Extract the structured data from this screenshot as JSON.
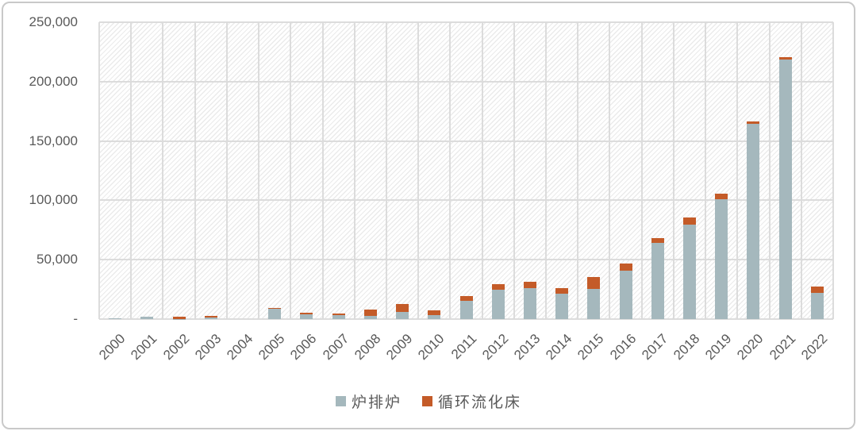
{
  "chart": {
    "background": "#ffffff",
    "frame_border_color": "#c9c9c9",
    "text_color": "#595959",
    "grid_color": "#dcdcdc",
    "hatch_color": "#ebebeb",
    "plot_background_style": "diagonal-hatch"
  },
  "chart_data": {
    "type": "bar",
    "stacked": true,
    "title": "",
    "xlabel": "",
    "ylabel": "",
    "categories": [
      "2000",
      "2001",
      "2002",
      "2003",
      "2004",
      "2005",
      "2006",
      "2007",
      "2008",
      "2009",
      "2010",
      "2011",
      "2012",
      "2013",
      "2014",
      "2015",
      "2016",
      "2017",
      "2018",
      "2019",
      "2020",
      "2021",
      "2022"
    ],
    "series": [
      {
        "name": "炉排炉",
        "color": "#a5b8bd",
        "values": [
          500,
          1700,
          300,
          1500,
          0,
          8800,
          4200,
          3500,
          3000,
          5800,
          3600,
          15500,
          24500,
          26000,
          21500,
          25400,
          40500,
          64500,
          79800,
          101000,
          164300,
          218700,
          22000
        ]
      },
      {
        "name": "循环流化床",
        "color": "#c45b28",
        "values": [
          0,
          0,
          1700,
          1400,
          0,
          700,
          1300,
          1400,
          5200,
          6700,
          4000,
          4000,
          4900,
          5100,
          4800,
          9800,
          6200,
          4000,
          6000,
          4500,
          2300,
          2000,
          5500
        ]
      }
    ],
    "ylim": [
      0,
      250000
    ],
    "ytick_step": 50000,
    "ytick_labels": [
      "-",
      "50,000",
      "100,000",
      "150,000",
      "200,000",
      "250,000"
    ],
    "grid": true,
    "legend_position": "bottom-center"
  }
}
